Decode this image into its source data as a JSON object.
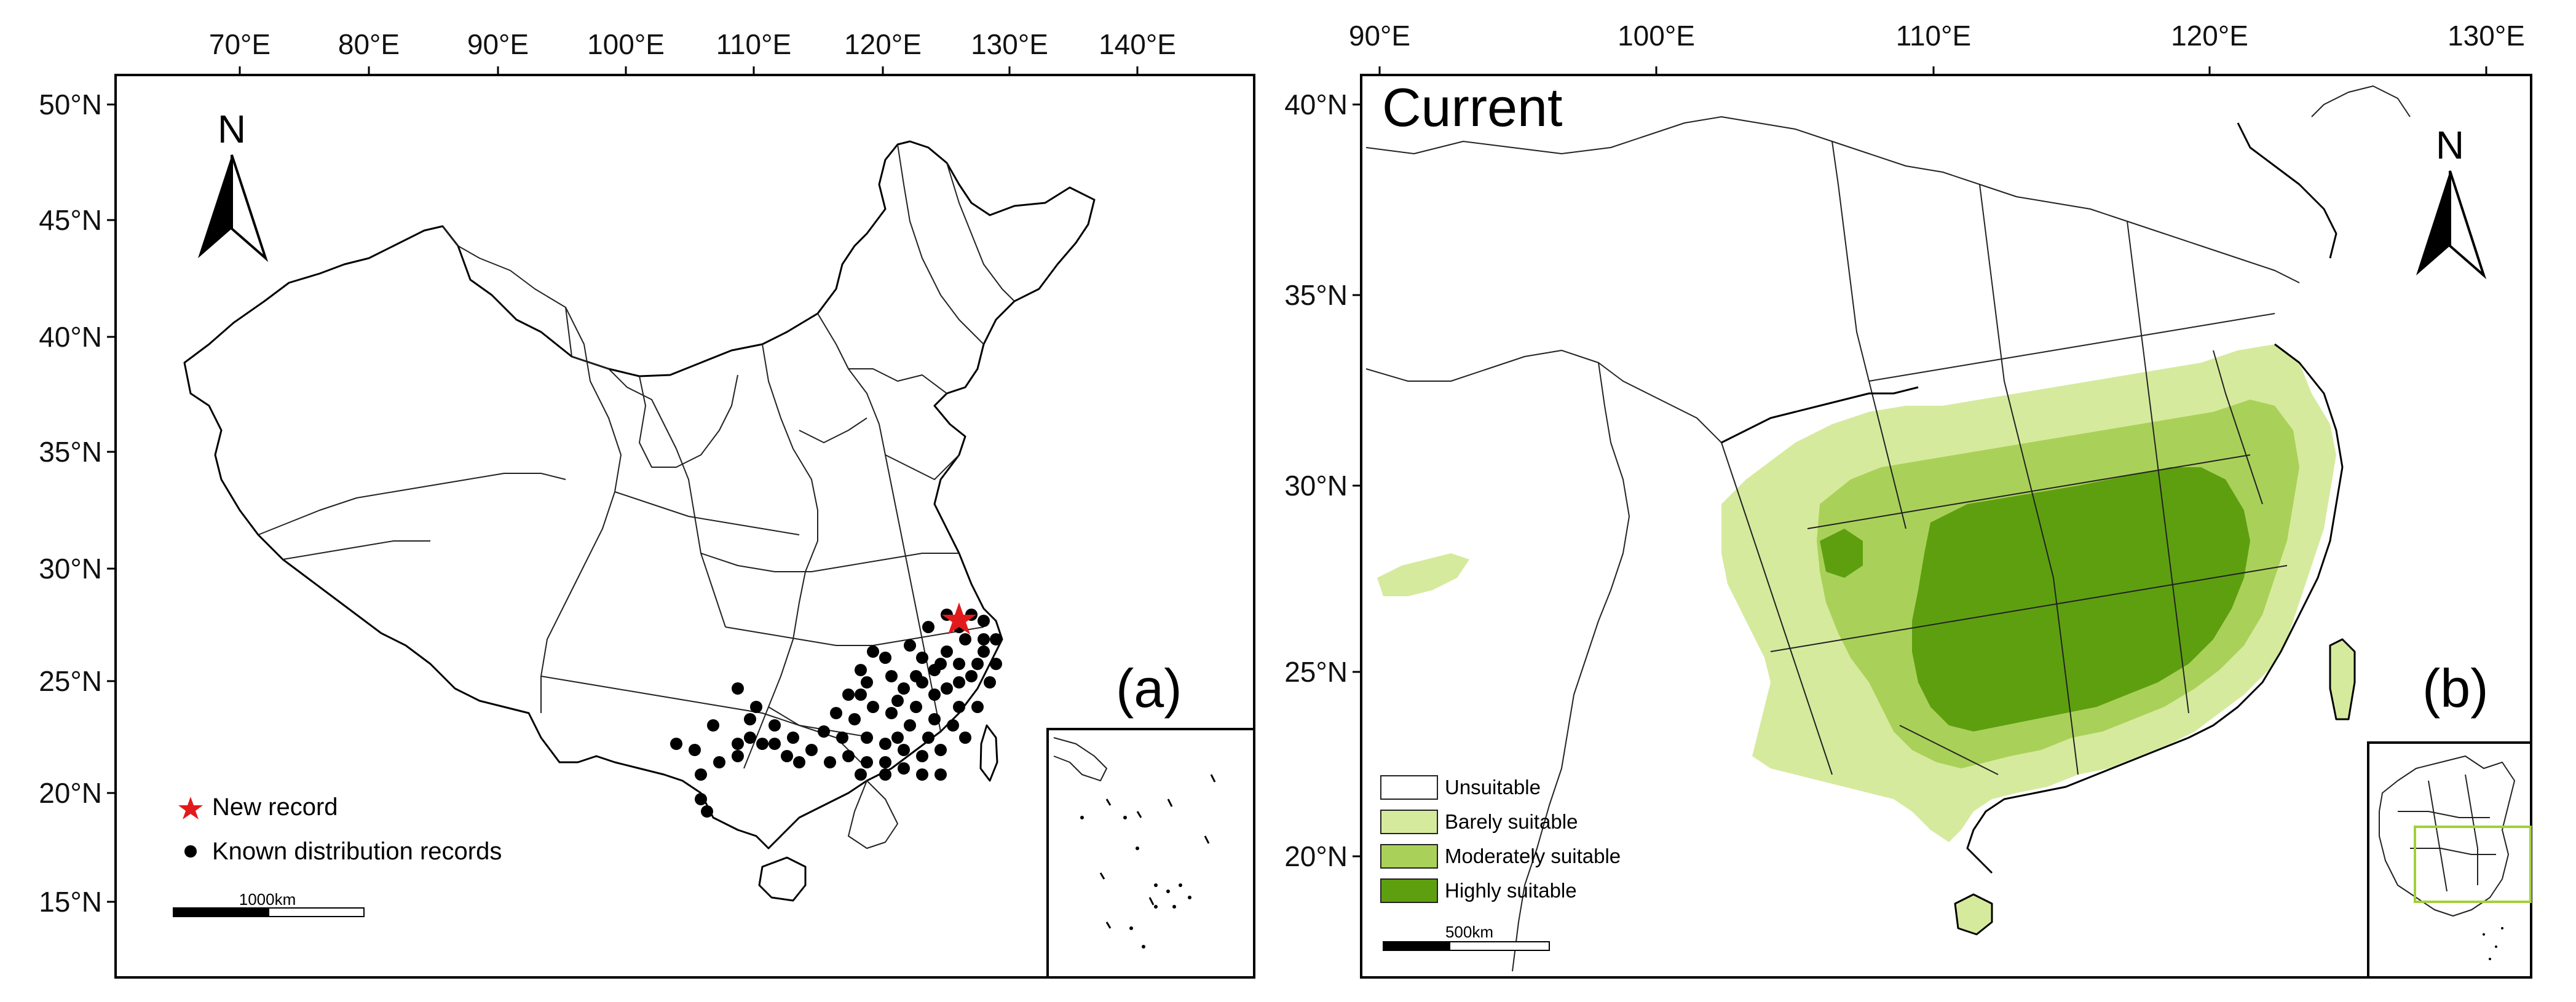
{
  "panel_a": {
    "label": "(a)",
    "north_label": "N",
    "x_ticks": [
      "70°E",
      "80°E",
      "90°E",
      "100°E",
      "110°E",
      "120°E",
      "130°E",
      "140°E"
    ],
    "y_ticks": [
      "50°N",
      "45°N",
      "40°N",
      "35°N",
      "30°N",
      "25°N",
      "20°N",
      "15°N"
    ],
    "legend": {
      "new_record": "New record",
      "known_records": "Known distribution records"
    },
    "scale_label": "1000km",
    "colors": {
      "new_record": "#e31a1c",
      "known_records": "#000000"
    }
  },
  "panel_b": {
    "label": "(b)",
    "title": "Current",
    "north_label": "N",
    "x_ticks": [
      "90°E",
      "100°E",
      "110°E",
      "120°E",
      "130°E"
    ],
    "y_ticks": [
      "40°N",
      "35°N",
      "30°N",
      "25°N",
      "20°N"
    ],
    "legend": [
      {
        "label": "Unsuitable",
        "color": "#ffffff"
      },
      {
        "label": "Barely suitable",
        "color": "#d6ea9d"
      },
      {
        "label": "Moderately suitable",
        "color": "#a9d159"
      },
      {
        "label": "Highly suitable",
        "color": "#5e9f10"
      }
    ],
    "scale_label": "500km",
    "inset_frame_color": "#a3cf3a"
  }
}
